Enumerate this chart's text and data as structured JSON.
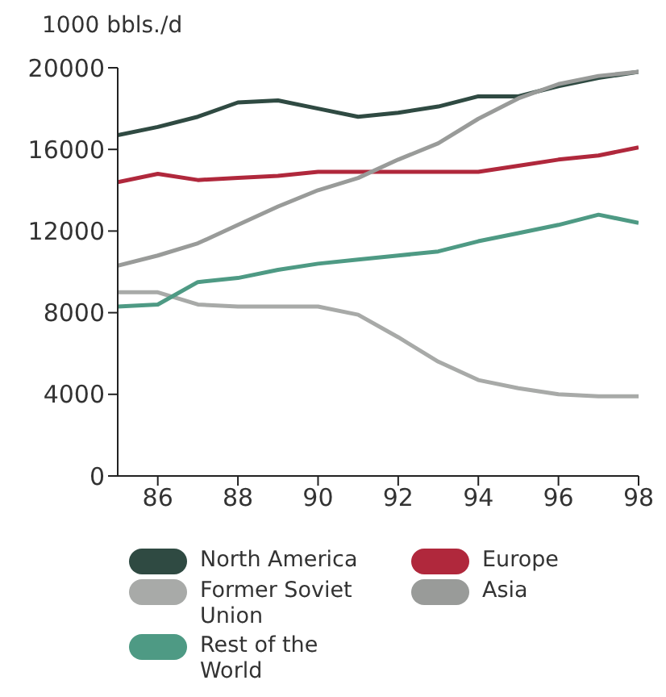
{
  "chart_data": {
    "type": "line",
    "ylabel": "1000 bbls./d",
    "x": [
      1985,
      1986,
      1987,
      1988,
      1989,
      1990,
      1991,
      1992,
      1993,
      1994,
      1995,
      1996,
      1997,
      1998
    ],
    "xlim": [
      1985,
      1998
    ],
    "xticks": [
      {
        "value": 1986,
        "label": "86"
      },
      {
        "value": 1988,
        "label": "88"
      },
      {
        "value": 1990,
        "label": "90"
      },
      {
        "value": 1992,
        "label": "92"
      },
      {
        "value": 1994,
        "label": "94"
      },
      {
        "value": 1996,
        "label": "96"
      },
      {
        "value": 1998,
        "label": "98"
      }
    ],
    "ylim": [
      0,
      20000
    ],
    "yticks": [
      0,
      4000,
      8000,
      12000,
      16000,
      20000
    ],
    "grid": false,
    "legend": "bottom",
    "marker": "none",
    "series": [
      {
        "name": "North America",
        "color": "#2f4a42",
        "values": [
          16700,
          17100,
          17600,
          18300,
          18400,
          18000,
          17600,
          17800,
          18100,
          18600,
          18600,
          19100,
          19500,
          19800
        ]
      },
      {
        "name": "Europe",
        "color": "#b0283c",
        "values": [
          14400,
          14800,
          14500,
          14600,
          14700,
          14900,
          14900,
          14900,
          14900,
          14900,
          15200,
          15500,
          15700,
          16100
        ]
      },
      {
        "name": "Former Soviet Union",
        "color": "#a8aaa8",
        "values": [
          9000,
          9000,
          8400,
          8300,
          8300,
          8300,
          7900,
          6800,
          5600,
          4700,
          4300,
          4000,
          3900,
          3900
        ]
      },
      {
        "name": "Asia",
        "color": "#999b99",
        "values": [
          10300,
          10800,
          11400,
          12300,
          13200,
          14000,
          14600,
          15500,
          16300,
          17500,
          18500,
          19200,
          19600,
          19800
        ]
      },
      {
        "name": "Rest of the World",
        "color": "#4e9a84",
        "values": [
          8300,
          8400,
          9500,
          9700,
          10100,
          10400,
          10600,
          10800,
          11000,
          11500,
          11900,
          12300,
          12800,
          12400
        ]
      }
    ]
  }
}
